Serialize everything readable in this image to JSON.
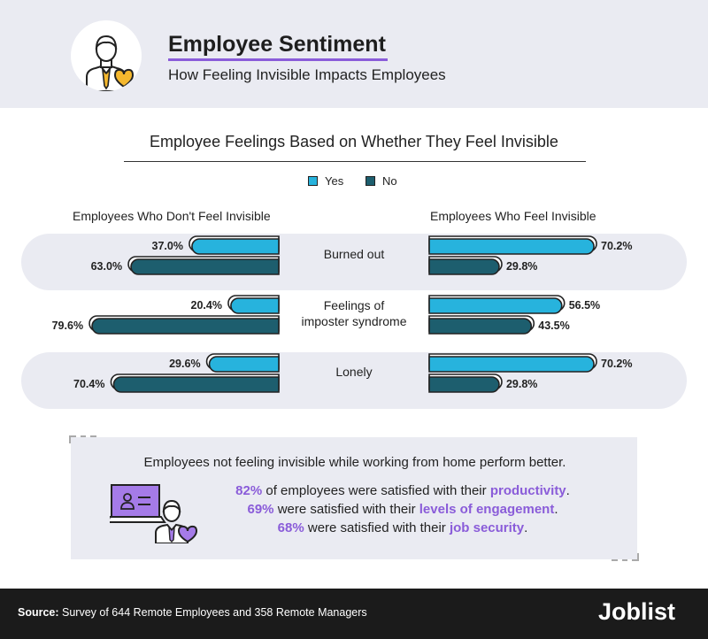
{
  "header": {
    "title": "Employee Sentiment",
    "subtitle": "How Feeling Invisible Impacts Employees"
  },
  "chart_data": {
    "type": "bar",
    "title": "Employee Feelings Based on Whether They Feel Invisible",
    "legend": [
      {
        "name": "Yes",
        "color": "#27b3dd"
      },
      {
        "name": "No",
        "color": "#1d5e6e"
      }
    ],
    "legend_position": "top-center",
    "panels": [
      {
        "title": "Employees Who Don't Feel Invisible",
        "direction": "left"
      },
      {
        "title": "Employees Who Feel Invisible",
        "direction": "right"
      }
    ],
    "categories": [
      "Burned out",
      "Feelings of imposter syndrome",
      "Lonely"
    ],
    "category_lines": [
      [
        "Burned out"
      ],
      [
        "Feelings of",
        "imposter syndrome"
      ],
      [
        "Lonely"
      ]
    ],
    "series": {
      "not_invisible": {
        "yes": [
          37.0,
          20.4,
          29.6
        ],
        "no": [
          63.0,
          79.6,
          70.4
        ]
      },
      "invisible": {
        "yes": [
          70.2,
          56.5,
          70.2
        ],
        "no": [
          29.8,
          43.5,
          29.8
        ]
      }
    },
    "value_suffix": "%",
    "xlim": [
      0,
      100
    ]
  },
  "info": {
    "headline": "Employees not feeling invisible while working from home perform better.",
    "lines": [
      {
        "stat": "82%",
        "text": " of employees were satisfied with their ",
        "highlight": "productivity",
        "end": "."
      },
      {
        "stat": "69%",
        "text": " were satisfied with their ",
        "highlight": "levels of engagement",
        "end": "."
      },
      {
        "stat": "68%",
        "text": " were satisfied with their ",
        "highlight": "job security",
        "end": "."
      }
    ]
  },
  "footer": {
    "source_label": "Source:",
    "source_text": " Survey of 644 Remote Employees and 358 Remote Managers",
    "logo": "Joblist"
  },
  "colors": {
    "accent": "#8a5cd9",
    "yes": "#27b3dd",
    "no": "#1d5e6e",
    "band": "#eaebf2",
    "icon_heart": "#f5b82e",
    "icon_heart_purple": "#a57be8"
  }
}
